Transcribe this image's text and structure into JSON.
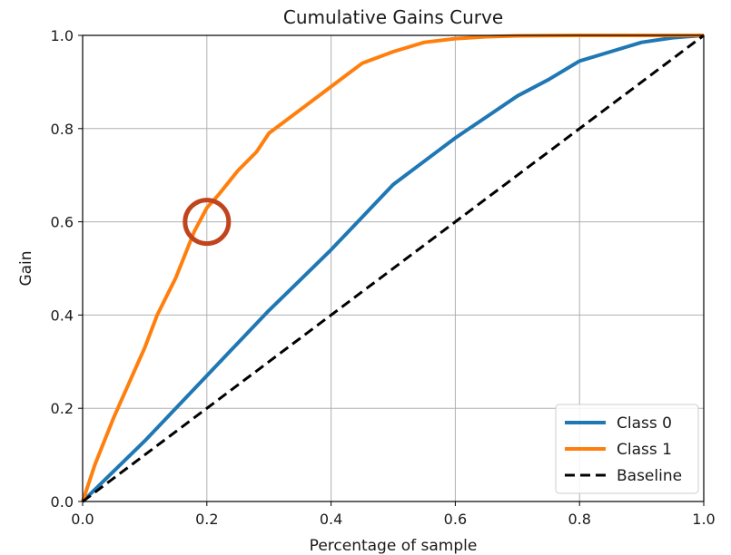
{
  "chart_data": {
    "type": "line",
    "title": "Cumulative Gains Curve",
    "xlabel": "Percentage of sample",
    "ylabel": "Gain",
    "xlim": [
      0.0,
      1.0
    ],
    "ylim": [
      0.0,
      1.0
    ],
    "x_ticks": [
      "0.0",
      "0.2",
      "0.4",
      "0.6",
      "0.8",
      "1.0"
    ],
    "y_ticks": [
      "0.0",
      "0.2",
      "0.4",
      "0.6",
      "0.8",
      "1.0"
    ],
    "grid": true,
    "legend_position": "lower-right",
    "series": [
      {
        "name": "Class 0",
        "color": "#1f77b4",
        "style": "solid",
        "x": [
          0.0,
          0.05,
          0.1,
          0.15,
          0.2,
          0.25,
          0.3,
          0.35,
          0.4,
          0.45,
          0.5,
          0.55,
          0.6,
          0.65,
          0.7,
          0.75,
          0.8,
          0.85,
          0.9,
          0.95,
          1.0
        ],
        "y": [
          0.0,
          0.065,
          0.13,
          0.2,
          0.27,
          0.34,
          0.41,
          0.475,
          0.54,
          0.61,
          0.68,
          0.73,
          0.78,
          0.825,
          0.87,
          0.905,
          0.945,
          0.965,
          0.985,
          0.995,
          1.0
        ]
      },
      {
        "name": "Class 1",
        "color": "#ff7f0e",
        "style": "solid",
        "x": [
          0.0,
          0.02,
          0.05,
          0.08,
          0.1,
          0.12,
          0.15,
          0.18,
          0.2,
          0.22,
          0.25,
          0.28,
          0.3,
          0.33,
          0.36,
          0.4,
          0.45,
          0.5,
          0.55,
          0.6,
          0.65,
          0.7,
          0.8,
          0.9,
          1.0
        ],
        "y": [
          0.0,
          0.08,
          0.18,
          0.27,
          0.33,
          0.4,
          0.48,
          0.58,
          0.63,
          0.66,
          0.71,
          0.75,
          0.79,
          0.82,
          0.85,
          0.89,
          0.94,
          0.965,
          0.985,
          0.993,
          0.997,
          0.999,
          1.0,
          1.0,
          1.0
        ]
      },
      {
        "name": "Baseline",
        "color": "#000000",
        "style": "dashed",
        "x": [
          0.0,
          1.0
        ],
        "y": [
          0.0,
          1.0
        ]
      }
    ],
    "annotations": [
      {
        "type": "circle-highlight",
        "x": 0.2,
        "y": 0.6,
        "color": "#c0441d"
      }
    ]
  }
}
